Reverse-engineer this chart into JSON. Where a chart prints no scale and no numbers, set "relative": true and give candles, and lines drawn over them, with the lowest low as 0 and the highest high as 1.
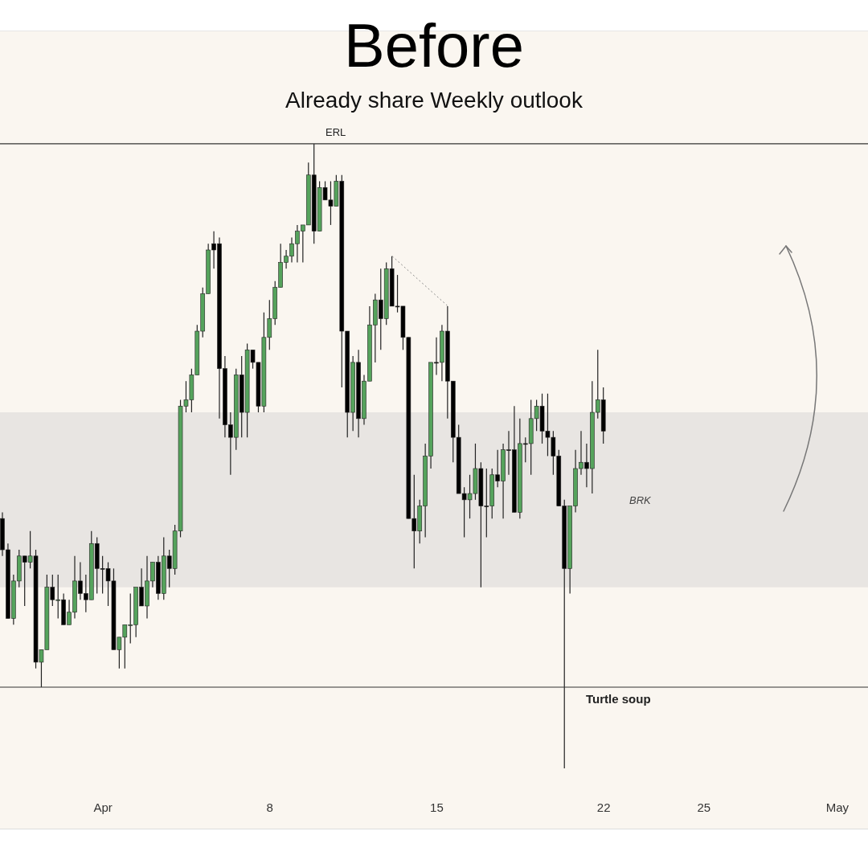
{
  "chart_data": {
    "type": "candlestick",
    "title": "Before",
    "subtitle": "Already share Weekly outlook",
    "relative": true,
    "categories": [
      null,
      null,
      null,
      null,
      null,
      null,
      null,
      null,
      null,
      null,
      null,
      null,
      null,
      null,
      null,
      null,
      null,
      null,
      "Apr",
      null,
      null,
      null,
      null,
      null,
      null,
      null,
      null,
      null,
      null,
      null,
      null,
      null,
      null,
      null,
      null,
      null,
      null,
      null,
      null,
      null,
      null,
      null,
      null,
      null,
      null,
      null,
      null,
      null,
      "8",
      null,
      null,
      null,
      null,
      null,
      null,
      null,
      null,
      null,
      null,
      null,
      null,
      null,
      null,
      null,
      null,
      null,
      null,
      null,
      null,
      null,
      null,
      null,
      null,
      null,
      null,
      null,
      null,
      null,
      "15",
      null,
      null,
      null,
      null,
      null,
      null,
      null,
      null,
      null,
      null,
      null,
      null,
      null,
      null,
      null,
      null,
      null,
      null,
      null,
      null,
      null,
      null,
      null,
      null,
      null,
      null,
      null,
      null,
      null,
      "22",
      null,
      null,
      null,
      null,
      null,
      null,
      null,
      null,
      null,
      null,
      null,
      null,
      null,
      null,
      null,
      null,
      null,
      "25",
      null,
      null,
      null,
      null,
      null,
      null,
      null,
      null,
      null,
      null,
      null,
      null,
      null,
      null,
      null,
      null,
      null,
      null,
      null,
      null,
      null,
      null,
      null,
      "May",
      null,
      null,
      null,
      null,
      null
    ],
    "ohlc": [
      [
        0.4,
        0.41,
        0.34,
        0.35
      ],
      [
        0.35,
        0.36,
        0.24,
        0.24
      ],
      [
        0.24,
        0.31,
        0.23,
        0.3
      ],
      [
        0.3,
        0.35,
        0.29,
        0.34
      ],
      [
        0.34,
        0.34,
        0.26,
        0.33
      ],
      [
        0.33,
        0.38,
        0.32,
        0.34
      ],
      [
        0.34,
        0.35,
        0.16,
        0.17
      ],
      [
        0.17,
        0.19,
        0.13,
        0.19
      ],
      [
        0.19,
        0.31,
        0.19,
        0.29
      ],
      [
        0.29,
        0.31,
        0.26,
        0.27
      ],
      [
        0.27,
        0.31,
        0.24,
        0.27
      ],
      [
        0.27,
        0.28,
        0.23,
        0.23
      ],
      [
        0.23,
        0.27,
        0.23,
        0.25
      ],
      [
        0.25,
        0.34,
        0.24,
        0.3
      ],
      [
        0.3,
        0.33,
        0.27,
        0.28
      ],
      [
        0.28,
        0.31,
        0.25,
        0.27
      ],
      [
        0.27,
        0.38,
        0.27,
        0.36
      ],
      [
        0.36,
        0.37,
        0.28,
        0.32
      ],
      [
        0.32,
        0.34,
        0.28,
        0.32
      ],
      [
        0.32,
        0.33,
        0.26,
        0.3
      ],
      [
        0.3,
        0.32,
        0.19,
        0.19
      ],
      [
        0.19,
        0.21,
        0.16,
        0.21
      ],
      [
        0.21,
        0.23,
        0.16,
        0.23
      ],
      [
        0.23,
        0.28,
        0.2,
        0.23
      ],
      [
        0.23,
        0.29,
        0.21,
        0.29
      ],
      [
        0.29,
        0.32,
        0.26,
        0.26
      ],
      [
        0.26,
        0.34,
        0.24,
        0.3
      ],
      [
        0.3,
        0.33,
        0.29,
        0.33
      ],
      [
        0.33,
        0.34,
        0.27,
        0.28
      ],
      [
        0.28,
        0.37,
        0.27,
        0.34
      ],
      [
        0.34,
        0.35,
        0.29,
        0.32
      ],
      [
        0.32,
        0.39,
        0.31,
        0.38
      ],
      [
        0.38,
        0.59,
        0.37,
        0.58
      ],
      [
        0.58,
        0.62,
        0.57,
        0.59
      ],
      [
        0.59,
        0.64,
        0.57,
        0.63
      ],
      [
        0.63,
        0.71,
        0.63,
        0.7
      ],
      [
        0.7,
        0.77,
        0.69,
        0.76
      ],
      [
        0.76,
        0.84,
        0.76,
        0.83
      ],
      [
        0.84,
        0.86,
        0.8,
        0.83
      ],
      [
        0.84,
        0.85,
        0.56,
        0.64
      ],
      [
        0.64,
        0.66,
        0.53,
        0.55
      ],
      [
        0.55,
        0.57,
        0.47,
        0.53
      ],
      [
        0.53,
        0.64,
        0.51,
        0.63
      ],
      [
        0.63,
        0.66,
        0.53,
        0.57
      ],
      [
        0.57,
        0.68,
        0.53,
        0.67
      ],
      [
        0.67,
        0.67,
        0.64,
        0.65
      ],
      [
        0.65,
        0.65,
        0.57,
        0.58
      ],
      [
        0.58,
        0.73,
        0.57,
        0.69
      ],
      [
        0.69,
        0.75,
        0.67,
        0.72
      ],
      [
        0.72,
        0.78,
        0.71,
        0.77
      ],
      [
        0.77,
        0.84,
        0.77,
        0.81
      ],
      [
        0.81,
        0.83,
        0.8,
        0.82
      ],
      [
        0.82,
        0.85,
        0.81,
        0.84
      ],
      [
        0.84,
        0.87,
        0.81,
        0.86
      ],
      [
        0.86,
        0.87,
        0.81,
        0.87
      ],
      [
        0.87,
        0.97,
        0.87,
        0.95
      ],
      [
        0.95,
        1,
        0.84,
        0.86
      ],
      [
        0.86,
        0.94,
        0.86,
        0.93
      ],
      [
        0.93,
        0.94,
        0.91,
        0.91
      ],
      [
        0.91,
        0.94,
        0.87,
        0.9
      ],
      [
        0.9,
        0.95,
        0.9,
        0.94
      ],
      [
        0.94,
        0.95,
        0.61,
        0.7
      ],
      [
        0.7,
        0.7,
        0.53,
        0.57
      ],
      [
        0.57,
        0.66,
        0.54,
        0.65
      ],
      [
        0.65,
        0.67,
        0.53,
        0.56
      ],
      [
        0.56,
        0.63,
        0.55,
        0.62
      ],
      [
        0.62,
        0.74,
        0.62,
        0.71
      ],
      [
        0.71,
        0.76,
        0.65,
        0.75
      ],
      [
        0.75,
        0.8,
        0.67,
        0.72
      ],
      [
        0.72,
        0.81,
        0.71,
        0.8
      ],
      [
        0.8,
        0.82,
        0.74,
        0.74
      ],
      [
        0.74,
        0.79,
        0.73,
        0.74
      ],
      [
        0.74,
        0.74,
        0.67,
        0.69
      ],
      [
        0.69,
        0.69,
        0.4,
        0.4
      ],
      [
        0.4,
        0.47,
        0.32,
        0.38
      ],
      [
        0.38,
        0.43,
        0.36,
        0.42
      ],
      [
        0.42,
        0.52,
        0.37,
        0.5
      ],
      [
        0.5,
        0.65,
        0.48,
        0.65
      ],
      [
        0.65,
        0.69,
        0.63,
        0.65
      ],
      [
        0.65,
        0.71,
        0.62,
        0.7
      ],
      [
        0.7,
        0.74,
        0.56,
        0.62
      ],
      [
        0.62,
        0.62,
        0.49,
        0.53
      ],
      [
        0.53,
        0.55,
        0.44,
        0.44
      ],
      [
        0.44,
        0.45,
        0.37,
        0.43
      ],
      [
        0.43,
        0.47,
        0.4,
        0.44
      ],
      [
        0.44,
        0.52,
        0.43,
        0.48
      ],
      [
        0.48,
        0.49,
        0.29,
        0.42
      ],
      [
        0.42,
        0.48,
        0.37,
        0.42
      ],
      [
        0.42,
        0.48,
        0.4,
        0.47
      ],
      [
        0.47,
        0.51,
        0.45,
        0.46
      ],
      [
        0.46,
        0.52,
        0.4,
        0.51
      ],
      [
        0.51,
        0.54,
        0.47,
        0.51
      ],
      [
        0.51,
        0.58,
        0.41,
        0.41
      ],
      [
        0.41,
        0.56,
        0.4,
        0.52
      ],
      [
        0.52,
        0.53,
        0.49,
        0.52
      ],
      [
        0.52,
        0.59,
        0.47,
        0.56
      ],
      [
        0.56,
        0.59,
        0.54,
        0.58
      ],
      [
        0.58,
        0.6,
        0.52,
        0.54
      ],
      [
        0.54,
        0.6,
        0.5,
        0.53
      ],
      [
        0.53,
        0.54,
        0.47,
        0.5
      ],
      [
        0.5,
        0.51,
        0.42,
        0.42
      ],
      [
        0.42,
        0.43,
        0,
        0.32
      ],
      [
        0.32,
        0.42,
        0.28,
        0.42
      ],
      [
        0.42,
        0.51,
        0.41,
        0.48
      ],
      [
        0.48,
        0.54,
        0.47,
        0.49
      ],
      [
        0.49,
        0.52,
        0.45,
        0.48
      ],
      [
        0.48,
        0.62,
        0.44,
        0.57
      ],
      [
        0.57,
        0.67,
        0.56,
        0.59
      ],
      [
        0.59,
        0.61,
        0.52,
        0.54
      ],
      null,
      null,
      null,
      null,
      null,
      null,
      null,
      null,
      null,
      null,
      null,
      null,
      null,
      null,
      null,
      null,
      null,
      null,
      null,
      null,
      null,
      null,
      null,
      null,
      null,
      null,
      null,
      null,
      null,
      null,
      null,
      null,
      null,
      null,
      null,
      null,
      null,
      null,
      null,
      null,
      null,
      null,
      null,
      null,
      null,
      null,
      null
    ],
    "colors": [
      "#000000",
      "#000000",
      "#55a35c",
      "#55a35c",
      "#000000",
      "#55a35c",
      "#000000",
      "#55a35c",
      "#55a35c",
      "#000000",
      "#55a35c",
      "#000000",
      "#55a35c",
      "#55a35c",
      "#000000",
      "#000000",
      "#55a35c",
      "#000000",
      "#000000",
      "#000000",
      "#000000",
      "#55a35c",
      "#55a35c",
      "#55a35c",
      "#55a35c",
      "#000000",
      "#55a35c",
      "#55a35c",
      "#000000",
      "#55a35c",
      "#000000",
      "#55a35c",
      "#55a35c",
      "#55a35c",
      "#55a35c",
      "#55a35c",
      "#55a35c",
      "#55a35c",
      "#000000",
      "#000000",
      "#000000",
      "#000000",
      "#55a35c",
      "#000000",
      "#55a35c",
      "#000000",
      "#000000",
      "#55a35c",
      "#55a35c",
      "#55a35c",
      "#55a35c",
      "#55a35c",
      "#55a35c",
      "#55a35c",
      "#55a35c",
      "#55a35c",
      "#000000",
      "#55a35c",
      "#000000",
      "#000000",
      "#55a35c",
      "#000000",
      "#000000",
      "#55a35c",
      "#000000",
      "#55a35c",
      "#55a35c",
      "#55a35c",
      "#000000",
      "#55a35c",
      "#000000",
      "#000000",
      "#000000",
      "#000000",
      "#000000",
      "#55a35c",
      "#55a35c",
      "#55a35c",
      "#000000",
      "#55a35c",
      "#000000",
      "#000000",
      "#000000",
      "#000000",
      "#55a35c",
      "#55a35c",
      "#000000",
      "#000000",
      "#55a35c",
      "#000000",
      "#55a35c",
      "#000000",
      "#000000",
      "#55a35c",
      "#000000",
      "#55a35c",
      "#55a35c",
      "#000000",
      "#000000",
      "#000000",
      "#000000",
      "#000000",
      "#55a35c",
      "#55a35c",
      "#55a35c",
      "#000000",
      "#55a35c",
      "#55a35c",
      "#000000",
      null,
      null,
      null,
      null,
      null,
      null,
      null,
      null,
      null,
      null,
      null,
      null,
      null,
      null,
      null,
      null,
      null,
      null,
      null,
      null,
      null,
      null,
      null,
      null,
      null,
      null,
      null,
      null,
      null,
      null,
      null,
      null,
      null,
      null,
      null,
      null,
      null,
      null,
      null,
      null,
      null,
      null,
      null,
      null,
      null,
      null,
      null
    ],
    "series": [
      {
        "type": "line",
        "color": "#8a8a8a",
        "line_style": "dotted",
        "values": [
          null,
          null,
          null,
          null,
          null,
          null,
          null,
          null,
          null,
          null,
          null,
          null,
          null,
          null,
          null,
          null,
          null,
          null,
          null,
          null,
          null,
          null,
          null,
          null,
          null,
          null,
          null,
          null,
          null,
          null,
          null,
          null,
          null,
          null,
          null,
          null,
          null,
          null,
          null,
          null,
          null,
          null,
          null,
          null,
          null,
          null,
          null,
          null,
          null,
          null,
          null,
          null,
          null,
          null,
          null,
          null,
          null,
          null,
          null,
          null,
          null,
          null,
          null,
          null,
          null,
          null,
          null,
          null,
          null,
          null,
          0.82,
          null,
          null,
          null,
          null,
          null,
          null,
          null,
          null,
          null,
          0.74,
          null,
          null,
          null,
          null,
          null,
          null,
          null,
          null,
          null,
          null,
          null,
          null,
          null,
          null,
          null,
          null,
          null,
          null,
          null,
          null,
          null,
          null,
          null,
          null,
          null,
          null,
          null,
          null,
          null,
          null,
          null,
          null,
          null,
          null,
          null,
          null,
          null,
          null,
          null,
          null,
          null,
          null,
          null,
          null,
          null,
          null,
          null,
          null,
          null,
          null,
          null,
          null,
          null,
          null,
          null,
          null,
          null,
          null,
          null,
          null,
          null,
          null,
          null,
          null,
          null,
          null,
          null,
          null,
          null,
          null,
          null,
          null,
          null,
          null,
          null
        ]
      }
    ],
    "ref_lines": [
      {
        "axis": "y",
        "value": 1,
        "label": "ERL",
        "color": "#333333"
      },
      {
        "axis": "y",
        "value": 0.13,
        "label": "Turtle soup",
        "color": "#333333"
      }
    ],
    "bands": [
      {
        "axis": "y",
        "from": 0.29,
        "to": 0.57,
        "label": "BRK",
        "color": "#e8e5e2"
      }
    ]
  }
}
